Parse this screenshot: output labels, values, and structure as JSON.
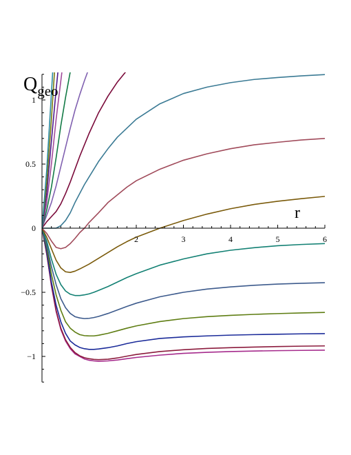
{
  "chart_data": {
    "type": "line",
    "title": "",
    "xlabel": "r",
    "ylabel_main": "Q",
    "ylabel_sub": "geo",
    "xlim": [
      0,
      6
    ],
    "ylim": [
      -1.2,
      1.2
    ],
    "x_ticks": [
      2,
      3,
      4,
      5,
      6
    ],
    "x_tick_labels": [
      "2",
      "3",
      "4",
      "5",
      "6"
    ],
    "y_ticks": [
      -1,
      -0.5,
      0,
      0.5,
      1
    ],
    "y_tick_labels": [
      "−1",
      "−0.5",
      "0",
      "0.5",
      "1"
    ],
    "grid": false,
    "legend": "none",
    "series": [
      {
        "color": "#a52a8c",
        "points": [
          [
            0,
            0
          ],
          [
            0.1,
            -0.2
          ],
          [
            0.2,
            -0.45
          ],
          [
            0.3,
            -0.65
          ],
          [
            0.4,
            -0.79
          ],
          [
            0.5,
            -0.88
          ],
          [
            0.6,
            -0.94
          ],
          [
            0.7,
            -0.98
          ],
          [
            0.8,
            -1.0
          ],
          [
            0.9,
            -1.02
          ],
          [
            1.0,
            -1.03
          ],
          [
            1.1,
            -1.035
          ],
          [
            1.2,
            -1.038
          ],
          [
            1.4,
            -1.035
          ],
          [
            1.6,
            -1.028
          ],
          [
            1.8,
            -1.018
          ],
          [
            2.0,
            -1.008
          ],
          [
            2.5,
            -0.99
          ],
          [
            3,
            -0.976
          ],
          [
            3.5,
            -0.968
          ],
          [
            4,
            -0.962
          ],
          [
            4.5,
            -0.958
          ],
          [
            5,
            -0.955
          ],
          [
            5.5,
            -0.953
          ],
          [
            6,
            -0.951
          ]
        ]
      },
      {
        "color": "#8b1a3c",
        "points": [
          [
            0,
            0
          ],
          [
            0.1,
            -0.2
          ],
          [
            0.2,
            -0.44
          ],
          [
            0.3,
            -0.64
          ],
          [
            0.4,
            -0.78
          ],
          [
            0.5,
            -0.87
          ],
          [
            0.6,
            -0.93
          ],
          [
            0.7,
            -0.97
          ],
          [
            0.8,
            -0.995
          ],
          [
            0.9,
            -1.01
          ],
          [
            1.0,
            -1.018
          ],
          [
            1.1,
            -1.023
          ],
          [
            1.2,
            -1.025
          ],
          [
            1.4,
            -1.022
          ],
          [
            1.6,
            -1.012
          ],
          [
            1.8,
            -0.998
          ],
          [
            2.0,
            -0.985
          ],
          [
            2.5,
            -0.962
          ],
          [
            3,
            -0.948
          ],
          [
            3.5,
            -0.938
          ],
          [
            4,
            -0.932
          ],
          [
            4.5,
            -0.927
          ],
          [
            5,
            -0.923
          ],
          [
            5.5,
            -0.92
          ],
          [
            6,
            -0.918
          ]
        ]
      },
      {
        "color": "#1a2a99",
        "points": [
          [
            0,
            0
          ],
          [
            0.1,
            -0.18
          ],
          [
            0.2,
            -0.42
          ],
          [
            0.3,
            -0.6
          ],
          [
            0.4,
            -0.73
          ],
          [
            0.5,
            -0.82
          ],
          [
            0.6,
            -0.88
          ],
          [
            0.7,
            -0.91
          ],
          [
            0.8,
            -0.93
          ],
          [
            0.9,
            -0.94
          ],
          [
            1.0,
            -0.945
          ],
          [
            1.1,
            -0.945
          ],
          [
            1.2,
            -0.942
          ],
          [
            1.4,
            -0.932
          ],
          [
            1.6,
            -0.918
          ],
          [
            1.8,
            -0.9
          ],
          [
            2.0,
            -0.885
          ],
          [
            2.5,
            -0.86
          ],
          [
            3,
            -0.848
          ],
          [
            3.5,
            -0.84
          ],
          [
            4,
            -0.834
          ],
          [
            4.5,
            -0.83
          ],
          [
            5,
            -0.827
          ],
          [
            5.5,
            -0.824
          ],
          [
            6,
            -0.822
          ]
        ]
      },
      {
        "color": "#5e7d12",
        "points": [
          [
            0,
            0
          ],
          [
            0.1,
            -0.15
          ],
          [
            0.2,
            -0.36
          ],
          [
            0.3,
            -0.52
          ],
          [
            0.4,
            -0.64
          ],
          [
            0.5,
            -0.73
          ],
          [
            0.6,
            -0.78
          ],
          [
            0.7,
            -0.81
          ],
          [
            0.8,
            -0.83
          ],
          [
            0.9,
            -0.838
          ],
          [
            1.0,
            -0.84
          ],
          [
            1.1,
            -0.84
          ],
          [
            1.2,
            -0.835
          ],
          [
            1.4,
            -0.82
          ],
          [
            1.6,
            -0.8
          ],
          [
            1.8,
            -0.78
          ],
          [
            2.0,
            -0.762
          ],
          [
            2.5,
            -0.728
          ],
          [
            3,
            -0.705
          ],
          [
            3.5,
            -0.69
          ],
          [
            4,
            -0.68
          ],
          [
            4.5,
            -0.672
          ],
          [
            5,
            -0.666
          ],
          [
            5.5,
            -0.661
          ],
          [
            6,
            -0.657
          ]
        ]
      },
      {
        "color": "#3c5a8c",
        "points": [
          [
            0,
            0
          ],
          [
            0.1,
            -0.13
          ],
          [
            0.2,
            -0.3
          ],
          [
            0.3,
            -0.44
          ],
          [
            0.4,
            -0.55
          ],
          [
            0.5,
            -0.62
          ],
          [
            0.6,
            -0.665
          ],
          [
            0.7,
            -0.69
          ],
          [
            0.8,
            -0.7
          ],
          [
            0.9,
            -0.705
          ],
          [
            1.0,
            -0.703
          ],
          [
            1.1,
            -0.697
          ],
          [
            1.2,
            -0.688
          ],
          [
            1.4,
            -0.665
          ],
          [
            1.6,
            -0.638
          ],
          [
            1.8,
            -0.61
          ],
          [
            2.0,
            -0.585
          ],
          [
            2.5,
            -0.535
          ],
          [
            3,
            -0.5
          ],
          [
            3.5,
            -0.475
          ],
          [
            4,
            -0.458
          ],
          [
            4.5,
            -0.445
          ],
          [
            5,
            -0.436
          ],
          [
            5.5,
            -0.43
          ],
          [
            6,
            -0.425
          ]
        ]
      },
      {
        "color": "#128073",
        "points": [
          [
            0,
            0
          ],
          [
            0.1,
            -0.1
          ],
          [
            0.2,
            -0.24
          ],
          [
            0.3,
            -0.36
          ],
          [
            0.4,
            -0.44
          ],
          [
            0.5,
            -0.49
          ],
          [
            0.6,
            -0.515
          ],
          [
            0.7,
            -0.525
          ],
          [
            0.8,
            -0.525
          ],
          [
            0.9,
            -0.52
          ],
          [
            1.0,
            -0.512
          ],
          [
            1.1,
            -0.5
          ],
          [
            1.2,
            -0.485
          ],
          [
            1.4,
            -0.455
          ],
          [
            1.6,
            -0.42
          ],
          [
            1.8,
            -0.385
          ],
          [
            2.0,
            -0.355
          ],
          [
            2.5,
            -0.288
          ],
          [
            3,
            -0.24
          ],
          [
            3.5,
            -0.2
          ],
          [
            4,
            -0.172
          ],
          [
            4.5,
            -0.152
          ],
          [
            5,
            -0.137
          ],
          [
            5.5,
            -0.127
          ],
          [
            6,
            -0.12
          ]
        ]
      },
      {
        "color": "#7a5a0a",
        "points": [
          [
            0,
            0
          ],
          [
            0.1,
            -0.07
          ],
          [
            0.2,
            -0.16
          ],
          [
            0.3,
            -0.25
          ],
          [
            0.4,
            -0.31
          ],
          [
            0.5,
            -0.34
          ],
          [
            0.6,
            -0.345
          ],
          [
            0.7,
            -0.335
          ],
          [
            0.8,
            -0.318
          ],
          [
            1.0,
            -0.28
          ],
          [
            1.2,
            -0.235
          ],
          [
            1.4,
            -0.19
          ],
          [
            1.6,
            -0.145
          ],
          [
            1.8,
            -0.105
          ],
          [
            2.0,
            -0.07
          ],
          [
            2.5,
            0.0
          ],
          [
            3,
            0.06
          ],
          [
            3.5,
            0.11
          ],
          [
            4,
            0.152
          ],
          [
            4.5,
            0.185
          ],
          [
            5,
            0.21
          ],
          [
            5.5,
            0.23
          ],
          [
            6,
            0.248
          ]
        ]
      },
      {
        "color": "#a04a5a",
        "points": [
          [
            0,
            0
          ],
          [
            0.1,
            -0.04
          ],
          [
            0.2,
            -0.1
          ],
          [
            0.3,
            -0.15
          ],
          [
            0.4,
            -0.16
          ],
          [
            0.5,
            -0.15
          ],
          [
            0.6,
            -0.12
          ],
          [
            0.7,
            -0.08
          ],
          [
            0.8,
            -0.035
          ],
          [
            0.9,
            0.0
          ],
          [
            1.0,
            0.045
          ],
          [
            1.2,
            0.12
          ],
          [
            1.4,
            0.2
          ],
          [
            1.6,
            0.26
          ],
          [
            1.8,
            0.32
          ],
          [
            2.0,
            0.37
          ],
          [
            2.5,
            0.46
          ],
          [
            3,
            0.53
          ],
          [
            3.5,
            0.58
          ],
          [
            4,
            0.62
          ],
          [
            4.5,
            0.65
          ],
          [
            5,
            0.67
          ],
          [
            5.5,
            0.688
          ],
          [
            6,
            0.7
          ]
        ]
      },
      {
        "color": "#3a7a94",
        "points": [
          [
            0,
            0
          ],
          [
            0.1,
            0.0
          ],
          [
            0.2,
            0.0
          ],
          [
            0.3,
            0.0
          ],
          [
            0.4,
            0.02
          ],
          [
            0.5,
            0.06
          ],
          [
            0.6,
            0.12
          ],
          [
            0.7,
            0.2
          ],
          [
            0.8,
            0.27
          ],
          [
            0.9,
            0.34
          ],
          [
            1.0,
            0.4
          ],
          [
            1.2,
            0.52
          ],
          [
            1.4,
            0.62
          ],
          [
            1.6,
            0.71
          ],
          [
            1.8,
            0.78
          ],
          [
            2.0,
            0.85
          ],
          [
            2.5,
            0.97
          ],
          [
            3,
            1.05
          ],
          [
            3.5,
            1.1
          ],
          [
            4,
            1.135
          ],
          [
            4.5,
            1.16
          ],
          [
            5,
            1.175
          ],
          [
            5.5,
            1.188
          ],
          [
            6,
            1.198
          ]
        ]
      },
      {
        "color": "#7a0a3a",
        "points": [
          [
            0,
            0
          ],
          [
            0.1,
            0.05
          ],
          [
            0.2,
            0.09
          ],
          [
            0.3,
            0.13
          ],
          [
            0.4,
            0.19
          ],
          [
            0.5,
            0.27
          ],
          [
            0.6,
            0.36
          ],
          [
            0.7,
            0.46
          ],
          [
            0.8,
            0.56
          ],
          [
            1.0,
            0.74
          ],
          [
            1.2,
            0.9
          ],
          [
            1.4,
            1.03
          ],
          [
            1.6,
            1.14
          ],
          [
            1.8,
            1.23
          ],
          [
            1.9,
            1.27
          ]
        ]
      },
      {
        "color": "#8060b0",
        "points": [
          [
            0,
            0
          ],
          [
            0.1,
            0.1
          ],
          [
            0.2,
            0.2
          ],
          [
            0.3,
            0.33
          ],
          [
            0.4,
            0.48
          ],
          [
            0.5,
            0.63
          ],
          [
            0.6,
            0.78
          ],
          [
            0.7,
            0.92
          ],
          [
            0.8,
            1.04
          ],
          [
            0.9,
            1.15
          ],
          [
            1.0,
            1.25
          ],
          [
            1.05,
            1.3
          ]
        ]
      },
      {
        "color": "#127a45",
        "points": [
          [
            0,
            0
          ],
          [
            0.1,
            0.14
          ],
          [
            0.2,
            0.32
          ],
          [
            0.3,
            0.55
          ],
          [
            0.4,
            0.8
          ],
          [
            0.5,
            1.02
          ],
          [
            0.6,
            1.22
          ],
          [
            0.65,
            1.3
          ]
        ]
      },
      {
        "color": "#a04a9a",
        "points": [
          [
            0,
            0
          ],
          [
            0.1,
            0.2
          ],
          [
            0.2,
            0.5
          ],
          [
            0.3,
            0.85
          ],
          [
            0.4,
            1.15
          ],
          [
            0.45,
            1.3
          ]
        ]
      },
      {
        "color": "#4a1a8c",
        "points": [
          [
            0,
            0
          ],
          [
            0.1,
            0.27
          ],
          [
            0.2,
            0.68
          ],
          [
            0.3,
            1.08
          ],
          [
            0.36,
            1.3
          ]
        ]
      },
      {
        "color": "#7a7a10",
        "points": [
          [
            0,
            0
          ],
          [
            0.1,
            0.35
          ],
          [
            0.2,
            0.85
          ],
          [
            0.28,
            1.3
          ]
        ]
      },
      {
        "color": "#2a8aa0",
        "points": [
          [
            0,
            0
          ],
          [
            0.1,
            0.45
          ],
          [
            0.2,
            1.05
          ],
          [
            0.24,
            1.3
          ]
        ]
      }
    ]
  }
}
